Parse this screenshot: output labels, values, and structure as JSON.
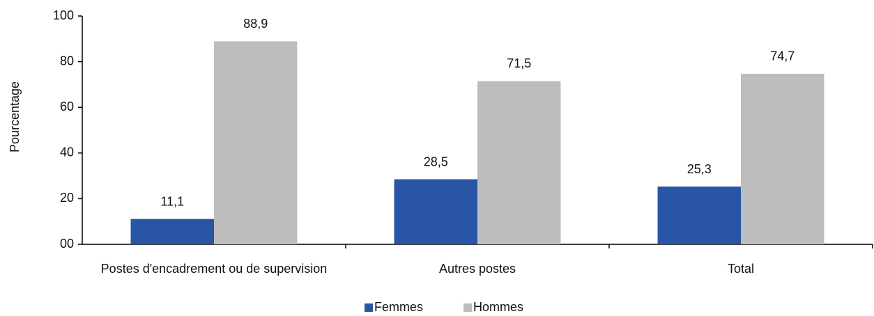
{
  "chart_data": {
    "type": "bar",
    "y_label": "Pourcentage",
    "categories": [
      "Postes d'encadrement ou de supervision",
      "Autres postes",
      "Total"
    ],
    "series": [
      {
        "name": "Femmes",
        "color": "#2855a5",
        "values": [
          11.1,
          28.5,
          25.3
        ],
        "value_labels": [
          "11,1",
          "28,5",
          "25,3"
        ]
      },
      {
        "name": "Hommes",
        "color": "#bdbdbd",
        "values": [
          88.9,
          71.5,
          74.7
        ],
        "value_labels": [
          "88,9",
          "71,5",
          "74,7"
        ]
      }
    ],
    "ylim": [
      0,
      100
    ],
    "yticks": [
      {
        "value": 0,
        "label": "00"
      },
      20,
      40,
      60,
      80,
      100
    ],
    "legend": "bottom"
  }
}
